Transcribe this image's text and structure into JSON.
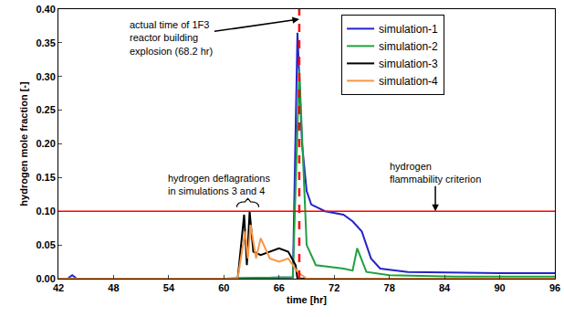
{
  "chart_data": {
    "type": "line",
    "x_label": "time [hr]",
    "y_label": "hydrogen mole fraction [-]",
    "xlim": [
      42,
      96
    ],
    "xticks": [
      42,
      48,
      54,
      60,
      66,
      72,
      78,
      84,
      90,
      96
    ],
    "ylim": [
      0,
      0.4
    ],
    "yticks": [
      {
        "value": 0,
        "label": "0.00"
      },
      {
        "value": 0.05,
        "label": "0.05"
      },
      {
        "value": 0.1,
        "label": "0.10"
      },
      {
        "value": 0.15,
        "label": "0.15"
      },
      {
        "value": 0.2,
        "label": "0.20"
      },
      {
        "value": 0.25,
        "label": "0.25"
      },
      {
        "value": 0.3,
        "label": "0.30"
      },
      {
        "value": 0.35,
        "label": "0.35"
      },
      {
        "value": 0.4,
        "label": "0.40"
      }
    ],
    "grid": false,
    "legend": "top right",
    "series": [
      {
        "name": "simulation-1",
        "color": "#2424c8",
        "x": [
          42,
          43,
          43.5,
          44,
          50,
          60,
          67.5,
          68.0,
          68.5,
          69,
          69.5,
          71,
          73,
          74,
          75,
          76,
          77,
          80,
          90,
          96
        ],
        "values": [
          0,
          0,
          0.005,
          0,
          0,
          0,
          0.002,
          0.365,
          0.2,
          0.13,
          0.11,
          0.1,
          0.095,
          0.085,
          0.07,
          0.03,
          0.015,
          0.01,
          0.008,
          0.008
        ]
      },
      {
        "name": "simulation-2",
        "color": "#20a040",
        "x": [
          42,
          60,
          67.5,
          68.2,
          69,
          70,
          73,
          74,
          74.5,
          75.5,
          78,
          85,
          96
        ],
        "values": [
          0,
          0,
          0.002,
          0.31,
          0.05,
          0.02,
          0.015,
          0.012,
          0.045,
          0.01,
          0.005,
          0.003,
          0.003
        ]
      },
      {
        "name": "simulation-3",
        "color": "#000000",
        "x": [
          42,
          61.5,
          62.2,
          62.5,
          62.8,
          63.2,
          64,
          65,
          66,
          67,
          67.8,
          68,
          96
        ],
        "values": [
          0,
          0,
          0.095,
          0.02,
          0.1,
          0.04,
          0.035,
          0.04,
          0.045,
          0.04,
          0.02,
          0,
          0
        ]
      },
      {
        "name": "simulation-4",
        "color": "#f79646",
        "x": [
          42,
          61.5,
          62.3,
          62.6,
          62.9,
          63.5,
          64,
          65,
          66,
          67,
          68,
          69,
          96
        ],
        "values": [
          0,
          0,
          0.07,
          0.03,
          0.08,
          0.03,
          0.06,
          0.03,
          0.025,
          0.03,
          0.01,
          0,
          0
        ]
      }
    ],
    "reference_lines": [
      {
        "axis": "x",
        "value": 68.2,
        "color": "#ff0000",
        "line_style": "dash"
      },
      {
        "axis": "y",
        "value": 0.1,
        "color": "#ff0000",
        "line_style": "solid"
      }
    ],
    "annotations": [
      "actual time of 1F3\nreactor building\nexplosion (68.2 hr)",
      "hydrogen deflagrations\nin simulations 3 and 4",
      "hydrogen\nflammability criterion"
    ]
  }
}
